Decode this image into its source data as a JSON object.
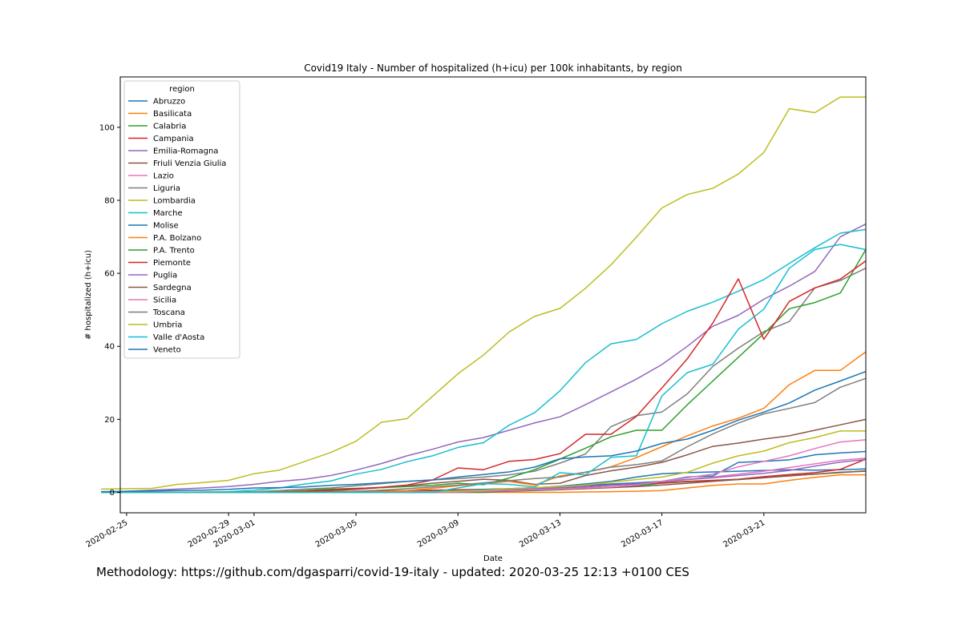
{
  "chart_data": {
    "type": "line",
    "title": "Covid19 Italy - Number of hospitalized (h+icu) per 100k inhabitants, by region",
    "xlabel": "Date",
    "ylabel": "# hospitalized (h+icu)",
    "legend_title": "region",
    "legend_position": "top-left",
    "grid": false,
    "x_tick_labels": [
      "2020-02-25",
      "2020-02-29",
      "2020-03-01",
      "2020-03-05",
      "2020-03-09",
      "2020-03-13",
      "2020-03-17",
      "2020-03-21"
    ],
    "y_ticks": [
      0,
      20,
      40,
      60,
      80,
      100
    ],
    "ylim": [
      -5.6,
      113.8
    ],
    "xlim": [
      "2020-02-24 18:00",
      "2020-03-25"
    ],
    "x": [
      "2020-02-24",
      "2020-02-25",
      "2020-02-26",
      "2020-02-27",
      "2020-02-28",
      "2020-02-29",
      "2020-03-01",
      "2020-03-02",
      "2020-03-03",
      "2020-03-04",
      "2020-03-05",
      "2020-03-06",
      "2020-03-07",
      "2020-03-08",
      "2020-03-09",
      "2020-03-10",
      "2020-03-11",
      "2020-03-12",
      "2020-03-13",
      "2020-03-14",
      "2020-03-15",
      "2020-03-16",
      "2020-03-17",
      "2020-03-18",
      "2020-03-19",
      "2020-03-20",
      "2020-03-21",
      "2020-03-22",
      "2020-03-23",
      "2020-03-24",
      "2020-03-25"
    ],
    "series": [
      {
        "name": "Abruzzo",
        "color": "#1f77b4",
        "values": [
          0,
          0,
          0,
          0,
          0,
          0,
          0,
          0,
          0,
          0,
          0,
          0,
          0,
          0,
          0.1,
          0.4,
          0.8,
          1.2,
          1.7,
          2.3,
          3.0,
          4.2,
          5.1,
          5.4,
          5.6,
          5.8,
          6.0,
          6.2,
          6.1,
          6.2,
          6.4
        ]
      },
      {
        "name": "Basilicata",
        "color": "#ff7f0e",
        "values": [
          0,
          0,
          0,
          0,
          0,
          0,
          0,
          0,
          0,
          0,
          0,
          0,
          0,
          0,
          0,
          0,
          0,
          0,
          0,
          0.1,
          0.2,
          0.3,
          0.5,
          1.2,
          1.9,
          2.3,
          2.3,
          3.3,
          4.1,
          4.8,
          4.8
        ]
      },
      {
        "name": "Calabria",
        "color": "#2ca02c",
        "values": [
          0,
          0,
          0,
          0,
          0,
          0,
          0,
          0,
          0,
          0,
          0,
          0,
          0,
          0,
          0,
          0,
          0.3,
          0.5,
          0.7,
          1.0,
          1.4,
          1.8,
          2.5,
          2.9,
          3.2,
          3.5,
          4.0,
          4.6,
          5.0,
          5.4,
          5.9
        ]
      },
      {
        "name": "Campania",
        "color": "#d62728",
        "values": [
          0,
          0,
          0,
          0,
          0,
          0,
          0,
          0.1,
          0.1,
          0.2,
          0.3,
          0.4,
          0.5,
          0.6,
          0.7,
          0.8,
          0.9,
          1.0,
          1.2,
          1.5,
          1.9,
          2.3,
          2.6,
          3.0,
          3.3,
          3.6,
          4.3,
          4.9,
          5.4,
          6.3,
          9.1
        ]
      },
      {
        "name": "Emilia-Romagna",
        "color": "#9467bd",
        "values": [
          0,
          0.3,
          0.6,
          0.9,
          1.2,
          1.6,
          2.2,
          3.0,
          3.6,
          4.6,
          6.1,
          7.9,
          10.0,
          11.8,
          13.8,
          15.0,
          17.0,
          19.0,
          20.7,
          24.0,
          27.5,
          31.0,
          35.0,
          40.0,
          45.5,
          48.5,
          52.9,
          56.5,
          60.5,
          70.0,
          73.5
        ]
      },
      {
        "name": "Friuli Venzia Giulia",
        "color": "#8c564b",
        "values": [
          0,
          0,
          0,
          0,
          0,
          0,
          0,
          0.1,
          0.2,
          0.5,
          0.8,
          1.3,
          1.8,
          2.5,
          3.0,
          3.6,
          3.3,
          2.2,
          2.5,
          4.6,
          5.9,
          6.9,
          8.2,
          10.3,
          12.6,
          13.5,
          14.6,
          15.5,
          17.0,
          18.5,
          20.0
        ]
      },
      {
        "name": "Lazio",
        "color": "#e377c2",
        "values": [
          0,
          0,
          0,
          0,
          0,
          0,
          0,
          0,
          0,
          0,
          0,
          0.1,
          0.2,
          0.3,
          0.4,
          0.6,
          0.8,
          1.0,
          1.3,
          1.6,
          2.0,
          2.4,
          3.0,
          3.5,
          4.2,
          5.0,
          5.8,
          6.8,
          7.8,
          8.8,
          9.4
        ]
      },
      {
        "name": "Liguria",
        "color": "#7f7f7f",
        "values": [
          0,
          0,
          0,
          0,
          0,
          0.1,
          0.2,
          0.5,
          0.9,
          1.2,
          1.8,
          2.4,
          3.0,
          3.4,
          3.8,
          4.2,
          4.8,
          5.8,
          8.0,
          10.5,
          18.0,
          21.0,
          22.0,
          27.0,
          34.5,
          39.5,
          44.0,
          46.8,
          56.0,
          58.0,
          61.4
        ]
      },
      {
        "name": "Lombardia",
        "color": "#bcbd22",
        "values": [
          0.9,
          1.0,
          1.1,
          2.2,
          2.7,
          3.3,
          5.1,
          6.1,
          8.5,
          10.9,
          14.0,
          19.2,
          20.2,
          26.3,
          32.5,
          37.6,
          43.9,
          48.2,
          50.4,
          55.9,
          62.3,
          69.9,
          77.9,
          81.6,
          83.3,
          87.2,
          93.1,
          105.1,
          104.0,
          108.3,
          108.3
        ]
      },
      {
        "name": "Marche",
        "color": "#17becf",
        "values": [
          0,
          0,
          0,
          0,
          0.1,
          0.2,
          0.6,
          1.2,
          2.3,
          3.1,
          5.0,
          6.3,
          8.4,
          10.0,
          12.3,
          13.6,
          18.4,
          21.8,
          27.8,
          35.5,
          40.7,
          41.9,
          46.2,
          49.6,
          52.1,
          55.1,
          58.3,
          62.7,
          67.0,
          71.0,
          72.0
        ]
      },
      {
        "name": "Molise",
        "color": "#1f77b4",
        "values": [
          0,
          0,
          0,
          0,
          0,
          0,
          0,
          0,
          0,
          0,
          0,
          0,
          0,
          0.3,
          0.5,
          0.8,
          1.0,
          1.3,
          1.6,
          1.9,
          2.3,
          2.6,
          3.0,
          4.2,
          4.5,
          8.2,
          8.5,
          8.9,
          10.3,
          10.8,
          11.2
        ]
      },
      {
        "name": "P.A. Bolzano",
        "color": "#ff7f0e",
        "values": [
          0,
          0,
          0,
          0,
          0,
          0,
          0,
          0,
          0,
          0,
          0,
          0.2,
          0.5,
          1.1,
          1.8,
          2.4,
          3.0,
          2.0,
          4.5,
          5.5,
          7.0,
          9.5,
          12.5,
          15.5,
          18.2,
          20.3,
          23.0,
          29.5,
          33.4,
          33.4,
          38.5
        ]
      },
      {
        "name": "P.A. Trento",
        "color": "#2ca02c",
        "values": [
          0,
          0,
          0,
          0,
          0,
          0,
          0,
          0.2,
          0.5,
          0.9,
          1.1,
          1.3,
          1.6,
          1.9,
          2.5,
          2.1,
          3.9,
          6.2,
          9.1,
          12.1,
          15.2,
          17.0,
          17.0,
          24.0,
          30.5,
          37.0,
          43.5,
          50.3,
          52.0,
          54.6,
          66.5
        ]
      },
      {
        "name": "Piemonte",
        "color": "#d62728",
        "values": [
          0,
          0,
          0,
          0,
          0,
          0,
          0,
          0.1,
          0.3,
          0.6,
          1.0,
          1.4,
          2.0,
          3.4,
          6.7,
          6.2,
          8.5,
          9.0,
          10.6,
          15.9,
          15.9,
          20.8,
          28.6,
          36.6,
          46.4,
          58.5,
          41.9,
          52.3,
          56.0,
          58.4,
          63.4
        ]
      },
      {
        "name": "Puglia",
        "color": "#9467bd",
        "values": [
          0,
          0,
          0,
          0,
          0,
          0,
          0,
          0,
          0,
          0,
          0,
          0,
          0,
          0.1,
          0.3,
          0.5,
          0.7,
          0.9,
          1.3,
          1.6,
          2.0,
          2.4,
          2.9,
          3.5,
          4.0,
          4.6,
          5.2,
          6.0,
          7.2,
          8.3,
          9.0
        ]
      },
      {
        "name": "Sardegna",
        "color": "#8c564b",
        "values": [
          0,
          0,
          0,
          0,
          0,
          0,
          0,
          0,
          0,
          0,
          0,
          0,
          0,
          0,
          0.1,
          0.2,
          0.4,
          0.6,
          0.8,
          1.0,
          1.3,
          1.6,
          2.0,
          2.5,
          3.0,
          3.5,
          4.0,
          4.5,
          5.0,
          5.5,
          5.8
        ]
      },
      {
        "name": "Sicilia",
        "color": "#e377c2",
        "values": [
          0,
          0,
          0,
          0,
          0,
          0,
          0,
          0,
          0,
          0,
          0,
          0,
          0,
          0,
          0.1,
          0.3,
          0.5,
          0.7,
          0.9,
          1.2,
          1.5,
          2.0,
          3.0,
          4.0,
          5.0,
          7.0,
          8.5,
          10.0,
          12.0,
          13.8,
          14.4
        ]
      },
      {
        "name": "Toscana",
        "color": "#7f7f7f",
        "values": [
          0,
          0,
          0,
          0,
          0,
          0,
          0,
          0,
          0,
          0.1,
          0.3,
          0.6,
          1.0,
          1.5,
          2.0,
          2.6,
          3.2,
          3.8,
          4.2,
          5.5,
          6.9,
          7.6,
          8.6,
          12.5,
          16.0,
          19.0,
          21.5,
          23.0,
          24.6,
          28.8,
          31.2
        ]
      },
      {
        "name": "Umbria",
        "color": "#bcbd22",
        "values": [
          0,
          0,
          0,
          0,
          0,
          0,
          0,
          0,
          0,
          0,
          0,
          0,
          0,
          0.2,
          0.4,
          0.6,
          1.0,
          1.3,
          1.6,
          2.0,
          2.8,
          3.5,
          4.2,
          5.5,
          8.0,
          10.0,
          11.3,
          13.6,
          15.0,
          16.8,
          16.8
        ]
      },
      {
        "name": "Valle d'Aosta",
        "color": "#17becf",
        "values": [
          0,
          0,
          0,
          0,
          0,
          0,
          0,
          0,
          0,
          0,
          0,
          0,
          0,
          0,
          1.2,
          2.4,
          2.2,
          1.5,
          5.4,
          4.8,
          9.6,
          10.0,
          26.4,
          32.8,
          35.1,
          44.7,
          50.2,
          61.4,
          66.5,
          67.9,
          66.5
        ]
      },
      {
        "name": "Veneto",
        "color": "#1f77b4",
        "values": [
          0.2,
          0.3,
          0.4,
          0.5,
          0.6,
          0.8,
          1.2,
          1.3,
          1.5,
          1.9,
          2.2,
          2.6,
          3.0,
          3.4,
          4.2,
          4.9,
          5.6,
          6.9,
          9.2,
          9.7,
          10.0,
          11.3,
          13.4,
          14.6,
          17.0,
          19.8,
          22.0,
          24.5,
          28.0,
          30.5,
          33.1
        ]
      }
    ]
  },
  "footer": {
    "methodology": "Methodology: https://github.com/dgasparri/covid-19-italy - updated: 2020-03-25 12:13 +0100 CES"
  }
}
